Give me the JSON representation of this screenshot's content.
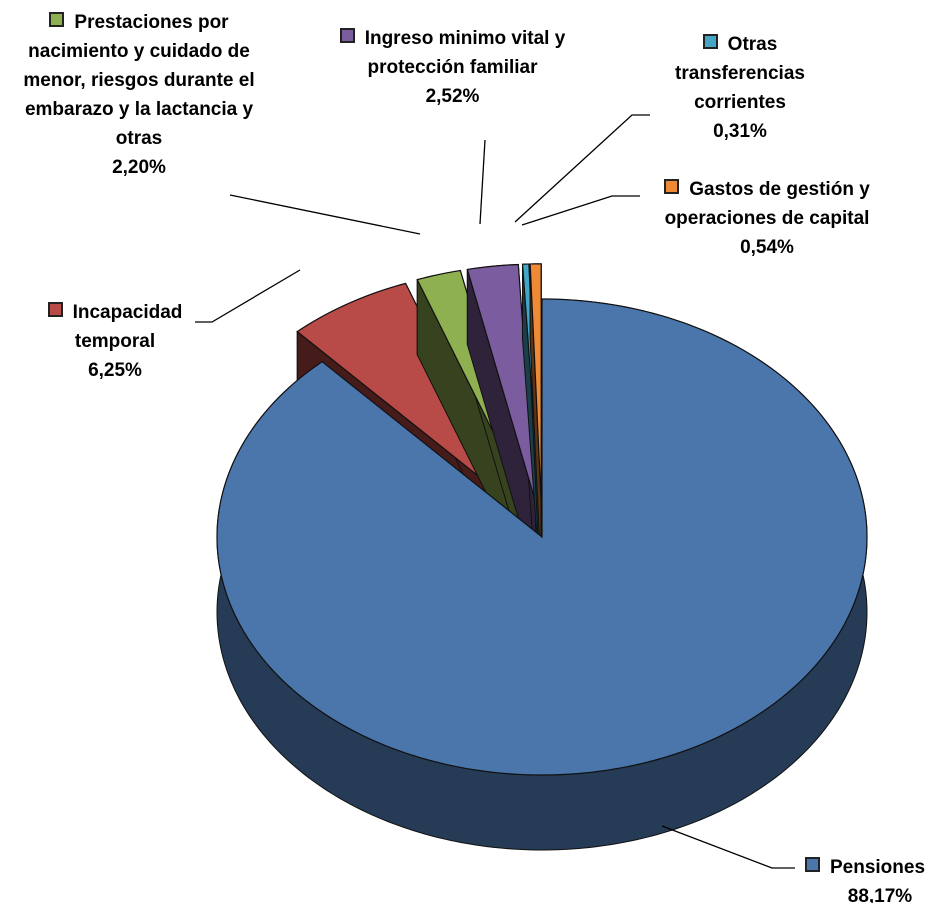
{
  "chart_data": {
    "type": "pie",
    "categories": [
      "Pensiones",
      "Incapacidad temporal",
      "Prestaciones por nacimiento y cuidado de menor, riesgos durante el embarazo y la lactancia y otras",
      "Ingreso minimo vital y protección familiar",
      "Otras transferencias corrientes",
      "Gastos de gestión y operaciones de capital"
    ],
    "values": [
      88.17,
      6.25,
      2.2,
      2.52,
      0.31,
      0.54
    ],
    "value_labels": [
      "88,17%",
      "6,25%",
      "2,20%",
      "2,52%",
      "0,31%",
      "0,54%"
    ],
    "colors": [
      "#4a76ab",
      "#b84a47",
      "#8fb050",
      "#7b5c9e",
      "#45a5c4",
      "#ee8a35"
    ]
  }
}
